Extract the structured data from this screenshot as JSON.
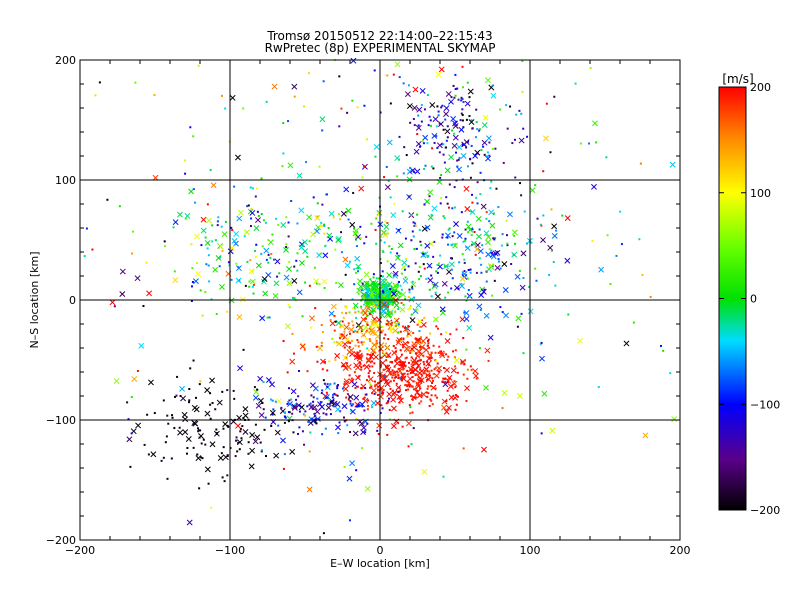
{
  "chart_data": {
    "type": "scatter",
    "title": "Tromsø 20150512 22:14:00–22:15:43",
    "subtitle": "RwPretec (8p) EXPERIMENTAL SKYMAP",
    "xlabel": "E–W location [km]",
    "ylabel": "N–S location [km]",
    "xlim": [
      -200,
      200
    ],
    "ylim": [
      -200,
      200
    ],
    "xticks": [
      -200,
      -100,
      0,
      100,
      200
    ],
    "yticks": [
      -200,
      -100,
      0,
      100,
      200
    ],
    "xtick_labels": [
      "−200",
      "−100",
      "0",
      "100",
      "200"
    ],
    "ytick_labels": [
      "−200",
      "−100",
      "0",
      "100",
      "200"
    ],
    "grid": true,
    "marker_types": [
      "dot",
      "x"
    ],
    "colorbar": {
      "label": "[m/s]",
      "range": [
        -200,
        200
      ],
      "ticks": [
        200,
        100,
        0,
        -100,
        -200
      ],
      "tick_labels": [
        "200",
        "100",
        "0",
        "−100",
        "−200"
      ],
      "colormap": "rainbow (black–purple–blue–cyan–green–yellow–red)"
    },
    "clusters": [
      {
        "center": [
          0,
          3
        ],
        "spread": [
          7,
          7
        ],
        "velocity_mean": 0,
        "velocity_spread": 30,
        "count": 320,
        "note": "dense core at origin"
      },
      {
        "center": [
          15,
          -60
        ],
        "spread": [
          22,
          18
        ],
        "velocity_mean": 195,
        "velocity_spread": 10,
        "count": 480,
        "note": "red cluster south of origin"
      },
      {
        "center": [
          -5,
          -25
        ],
        "spread": [
          20,
          12
        ],
        "velocity_mean": 140,
        "velocity_spread": 40,
        "count": 160
      },
      {
        "center": [
          -40,
          -90
        ],
        "spread": [
          20,
          12
        ],
        "velocity_mean": -110,
        "velocity_spread": 40,
        "count": 160
      },
      {
        "center": [
          -110,
          -110
        ],
        "spread": [
          25,
          20
        ],
        "velocity_mean": -195,
        "velocity_spread": 10,
        "count": 140
      },
      {
        "center": [
          40,
          40
        ],
        "spread": [
          35,
          30
        ],
        "velocity_mean": -60,
        "velocity_spread": 60,
        "count": 300
      },
      {
        "center": [
          50,
          140
        ],
        "spread": [
          18,
          20
        ],
        "velocity_mean": -120,
        "velocity_spread": 50,
        "count": 160
      },
      {
        "center": [
          -80,
          40
        ],
        "spread": [
          35,
          25
        ],
        "velocity_mean": -20,
        "velocity_spread": 80,
        "count": 180
      },
      {
        "center": [
          0,
          50
        ],
        "spread": [
          110,
          110
        ],
        "velocity_mean": 20,
        "velocity_spread": 140,
        "count": 400
      }
    ]
  }
}
